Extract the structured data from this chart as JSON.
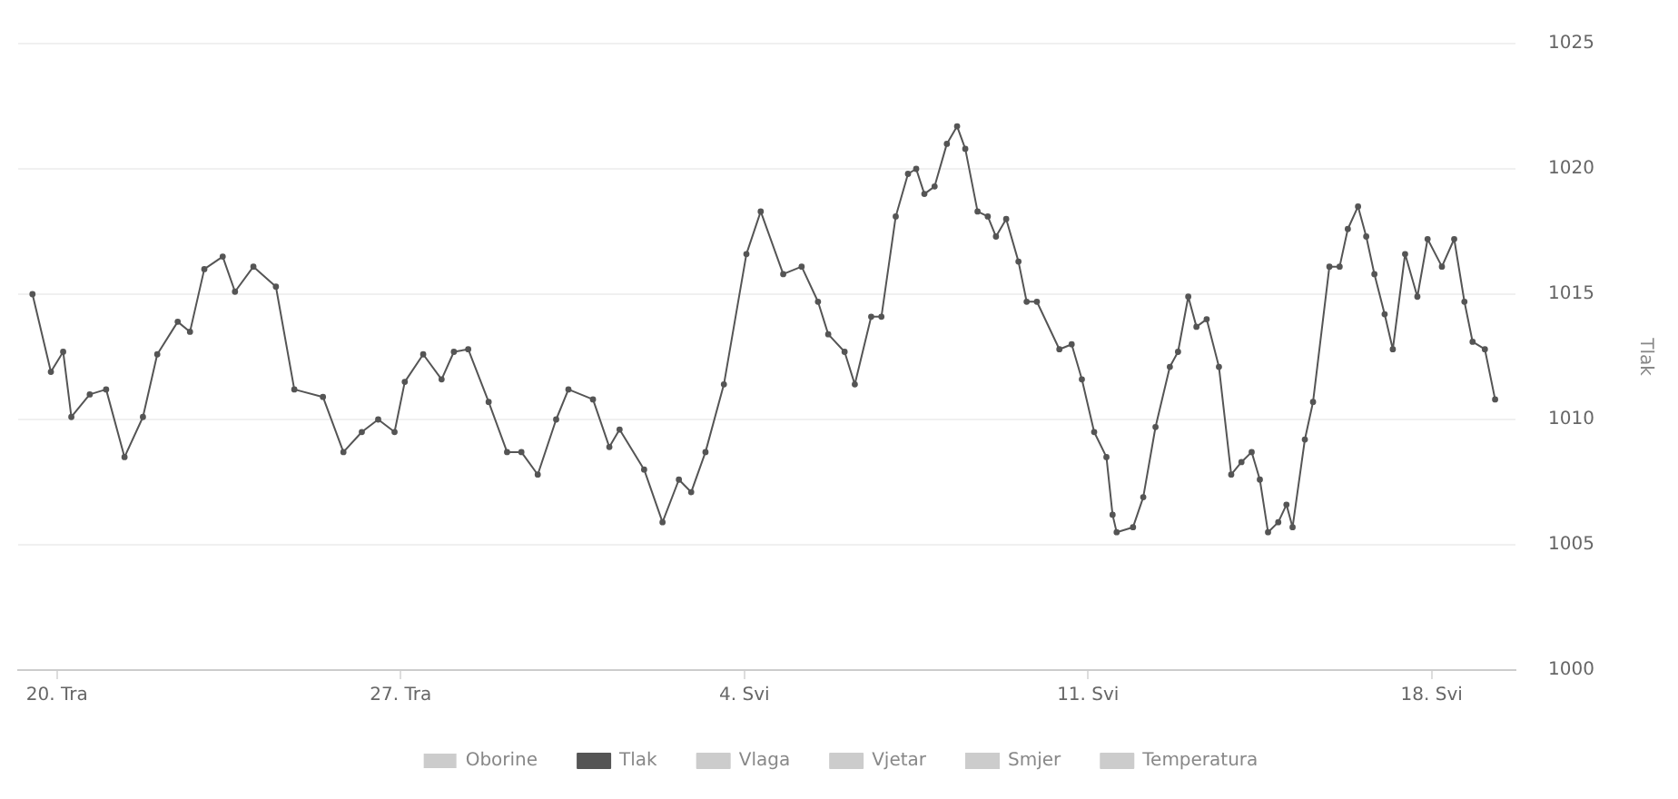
{
  "chart_data": {
    "type": "line",
    "ylabel": "Tlak",
    "x": [
      "--04-19T12:00",
      "--04-19T21:00",
      "--04-20T03:00",
      "--04-20T07:00",
      "--04-20T16:00",
      "--04-21T00:00",
      "--04-21T09:00",
      "--04-21T18:00",
      "--04-22T01:00",
      "--04-22T11:00",
      "--04-22T17:00",
      "--04-23T00:00",
      "--04-23T09:00",
      "--04-23T15:00",
      "--04-24T00:00",
      "--04-24T11:00",
      "--04-24T20:00",
      "--04-25T10:00",
      "--04-25T20:00",
      "--04-26T05:00",
      "--04-26T13:00",
      "--04-26T21:00",
      "--04-27T02:00",
      "--04-27T11:00",
      "--04-27T20:00",
      "--04-28T02:00",
      "--04-28T09:00",
      "--04-28T19:00",
      "--04-29T04:00",
      "--04-29T11:00",
      "--04-29T19:00",
      "--04-30T04:00",
      "--04-30T10:00",
      "--04-30T22:00",
      "--05-01T06:00",
      "--05-01T11:00",
      "--05-01T23:00",
      "--05-02T08:00",
      "--05-02T16:00",
      "--05-02T22:00",
      "--05-03T05:00",
      "--05-03T14:00",
      "--05-04T01:00",
      "--05-04T08:00",
      "--05-04T19:00",
      "--05-05T04:00",
      "--05-05T12:00",
      "--05-05T17:00",
      "--05-06T01:00",
      "--05-06T06:00",
      "--05-06T14:00",
      "--05-06T19:00",
      "--05-07T02:00",
      "--05-07T08:00",
      "--05-07T12:00",
      "--05-07T16:00",
      "--05-07T21:00",
      "--05-08T03:00",
      "--05-08T08:00",
      "--05-08T12:00",
      "--05-08T18:00",
      "--05-08T23:00",
      "--05-09T03:00",
      "--05-09T08:00",
      "--05-09T14:00",
      "--05-09T18:00",
      "--05-09T23:00",
      "--05-10T10:00",
      "--05-10T16:00",
      "--05-10T21:00",
      "--05-11T03:00",
      "--05-11T09:00",
      "--05-11T12:00",
      "--05-11T14:00",
      "--05-11T22:00",
      "--05-12T03:00",
      "--05-12T09:00",
      "--05-12T16:00",
      "--05-12T20:00",
      "--05-13T01:00",
      "--05-13T05:00",
      "--05-13T10:00",
      "--05-13T16:00",
      "--05-13T22:00",
      "--05-14T03:00",
      "--05-14T08:00",
      "--05-14T12:00",
      "--05-14T16:00",
      "--05-14T21:00",
      "--05-15T01:00",
      "--05-15T04:00",
      "--05-15T10:00",
      "--05-15T14:00",
      "--05-15T22:00",
      "--05-16T03:00",
      "--05-16T07:00",
      "--05-16T12:00",
      "--05-16T16:00",
      "--05-16T20:00",
      "--05-17T01:00",
      "--05-17T05:00",
      "--05-17T11:00",
      "--05-17T17:00",
      "--05-17T22:00",
      "--05-18T05:00",
      "--05-18T11:00",
      "--05-18T16:00",
      "--05-18T20:00",
      "--05-19T02:00",
      "--05-19T07:00"
    ],
    "series": [
      {
        "name": "Oborine",
        "type": "bar",
        "color": "#cccccc",
        "values": [
          null,
          null,
          null,
          null,
          null,
          null,
          null,
          null,
          null,
          null,
          null,
          null,
          null,
          null,
          null,
          null,
          null,
          null,
          null,
          null,
          null,
          null,
          null,
          null,
          null,
          null,
          null,
          null,
          null,
          null,
          null,
          null,
          null,
          null,
          null,
          null,
          null,
          null,
          null,
          null,
          null,
          null,
          null,
          null,
          null,
          null,
          null,
          null,
          null,
          null,
          null,
          null,
          null,
          null,
          null,
          null,
          null,
          null,
          null,
          null,
          null,
          null,
          null,
          null,
          null,
          null,
          null,
          null,
          null,
          null,
          null,
          null,
          null,
          null,
          null,
          null,
          null,
          null,
          null,
          null,
          null,
          null,
          null,
          null,
          null,
          null,
          null,
          null,
          null,
          null,
          null,
          null,
          null,
          null,
          null,
          null,
          null,
          null,
          null,
          null,
          null,
          null,
          null,
          null,
          null,
          null,
          null,
          null,
          null,
          null
        ]
      },
      {
        "name": "Tlak",
        "color": "#555555",
        "values": [
          1015.0,
          1011.9,
          1012.7,
          1010.1,
          1011.0,
          1011.2,
          1008.5,
          1010.1,
          1012.6,
          1013.9,
          1013.5,
          1016.0,
          1016.5,
          1015.1,
          1016.1,
          1015.3,
          1011.2,
          1010.9,
          1008.7,
          1009.5,
          1010.0,
          1009.5,
          1011.5,
          1012.6,
          1011.6,
          1012.7,
          1012.8,
          1010.7,
          1008.7,
          1008.7,
          1007.8,
          1010.0,
          1011.2,
          1010.8,
          1008.9,
          1009.6,
          1008.0,
          1005.9,
          1007.6,
          1007.1,
          1008.7,
          1011.4,
          1016.6,
          1018.3,
          1015.8,
          1016.1,
          1014.7,
          1013.4,
          1012.7,
          1011.4,
          1014.1,
          1014.1,
          1018.1,
          1019.8,
          1020.0,
          1019.0,
          1019.3,
          1021.0,
          1021.7,
          1020.8,
          1018.3,
          1018.1,
          1017.3,
          1018.0,
          1016.3,
          1014.7,
          1014.7,
          1012.8,
          1013.0,
          1011.6,
          1009.5,
          1008.5,
          1006.2,
          1005.5,
          1005.7,
          1006.9,
          1009.7,
          1012.1,
          1012.7,
          1014.9,
          1013.7,
          1014.0,
          1012.1,
          1007.8,
          1008.3,
          1008.7,
          1007.6,
          1005.5,
          1005.9,
          1006.6,
          1005.7,
          1009.2,
          1010.7,
          1016.1,
          1016.1,
          1017.6,
          1018.5,
          1017.3,
          1015.8,
          1014.2,
          1012.8,
          1016.6,
          1014.9,
          1017.2,
          1016.1,
          1017.2,
          1014.7,
          1013.1,
          1012.8,
          1010.8
        ]
      },
      {
        "name": "Vlaga",
        "color": "#cccccc",
        "values": [
          null,
          null,
          null,
          null,
          null,
          null,
          null,
          null,
          null,
          null,
          null,
          null,
          null,
          null,
          null,
          null,
          null,
          null,
          null,
          null,
          null,
          null,
          null,
          null,
          null,
          null,
          null,
          null,
          null,
          null,
          null,
          null,
          null,
          null,
          null,
          null,
          null,
          null,
          null,
          null,
          null,
          null,
          null,
          null,
          null,
          null,
          null,
          null,
          null,
          null,
          null,
          null,
          null,
          null,
          null,
          null,
          null,
          null,
          null,
          null,
          null,
          null,
          null,
          null,
          null,
          null,
          null,
          null,
          null,
          null,
          null,
          null,
          null,
          null,
          null,
          null,
          null,
          null,
          null,
          null,
          null,
          null,
          null,
          null,
          null,
          null,
          null,
          null,
          null,
          null,
          null,
          null,
          null,
          null,
          null,
          null,
          null,
          null,
          null,
          null,
          null,
          null,
          null,
          null,
          null,
          null,
          null,
          null,
          null,
          null
        ]
      },
      {
        "name": "Vjetar",
        "color": "#cccccc",
        "values": [
          null,
          null,
          null,
          null,
          null,
          null,
          null,
          null,
          null,
          null,
          null,
          null,
          null,
          null,
          null,
          null,
          null,
          null,
          null,
          null,
          null,
          null,
          null,
          null,
          null,
          null,
          null,
          null,
          null,
          null,
          null,
          null,
          null,
          null,
          null,
          null,
          null,
          null,
          null,
          null,
          null,
          null,
          null,
          null,
          null,
          null,
          null,
          null,
          null,
          null,
          null,
          null,
          null,
          null,
          null,
          null,
          null,
          null,
          null,
          null,
          null,
          null,
          null,
          null,
          null,
          null,
          null,
          null,
          null,
          null,
          null,
          null,
          null,
          null,
          null,
          null,
          null,
          null,
          null,
          null,
          null,
          null,
          null,
          null,
          null,
          null,
          null,
          null,
          null,
          null,
          null,
          null,
          null,
          null,
          null,
          null,
          null,
          null,
          null,
          null,
          null,
          null,
          null,
          null,
          null,
          null,
          null,
          null,
          null,
          null
        ]
      },
      {
        "name": "Smjer",
        "type": "scatter",
        "color": "#cccccc",
        "values": [
          null,
          null,
          null,
          null,
          null,
          null,
          null,
          null,
          null,
          null,
          null,
          null,
          null,
          null,
          null,
          null,
          null,
          null,
          null,
          null,
          null,
          null,
          null,
          null,
          null,
          null,
          null,
          null,
          null,
          null,
          null,
          null,
          null,
          null,
          null,
          null,
          null,
          null,
          null,
          null,
          null,
          null,
          null,
          null,
          null,
          null,
          null,
          null,
          null,
          null,
          null,
          null,
          null,
          null,
          null,
          null,
          null,
          null,
          null,
          null,
          null,
          null,
          null,
          null,
          null,
          null,
          null,
          null,
          null,
          null,
          null,
          null,
          null,
          null,
          null,
          null,
          null,
          null,
          null,
          null,
          null,
          null,
          null,
          null,
          null,
          null,
          null,
          null,
          null,
          null,
          null,
          null,
          null,
          null,
          null,
          null,
          null,
          null,
          null,
          null,
          null,
          null,
          null,
          null,
          null,
          null,
          null,
          null,
          null,
          null
        ]
      },
      {
        "name": "Temperatura",
        "color": "#cccccc",
        "values": [
          null,
          null,
          null,
          null,
          null,
          null,
          null,
          null,
          null,
          null,
          null,
          null,
          null,
          null,
          null,
          null,
          null,
          null,
          null,
          null,
          null,
          null,
          null,
          null,
          null,
          null,
          null,
          null,
          null,
          null,
          null,
          null,
          null,
          null,
          null,
          null,
          null,
          null,
          null,
          null,
          null,
          null,
          null,
          null,
          null,
          null,
          null,
          null,
          null,
          null,
          null,
          null,
          null,
          null,
          null,
          null,
          null,
          null,
          null,
          null,
          null,
          null,
          null,
          null,
          null,
          null,
          null,
          null,
          null,
          null,
          null,
          null,
          null,
          null,
          null,
          null,
          null,
          null,
          null,
          null,
          null,
          null,
          null,
          null,
          null,
          null,
          null,
          null,
          null,
          null,
          null,
          null,
          null,
          null,
          null,
          null,
          null,
          null,
          null,
          null,
          null,
          null,
          null,
          null,
          null,
          null,
          null,
          null,
          null,
          null
        ]
      }
    ],
    "xlim": [
      "--04-19T05:00",
      "--05-19T17:00"
    ],
    "xticks": [
      {
        "value": "--04-20",
        "label": "20. Tra"
      },
      {
        "value": "--04-27",
        "label": "27. Tra"
      },
      {
        "value": "--05-04",
        "label": "4. Svi"
      },
      {
        "value": "--05-11",
        "label": "11. Svi"
      },
      {
        "value": "--05-18",
        "label": "18. Svi"
      }
    ],
    "ylim": [
      1000,
      1025
    ],
    "yticks": [
      1000,
      1005,
      1010,
      1015,
      1020,
      1025
    ],
    "grid": "y",
    "legend": "bottom",
    "marker": "circle",
    "line_style": "solid"
  }
}
